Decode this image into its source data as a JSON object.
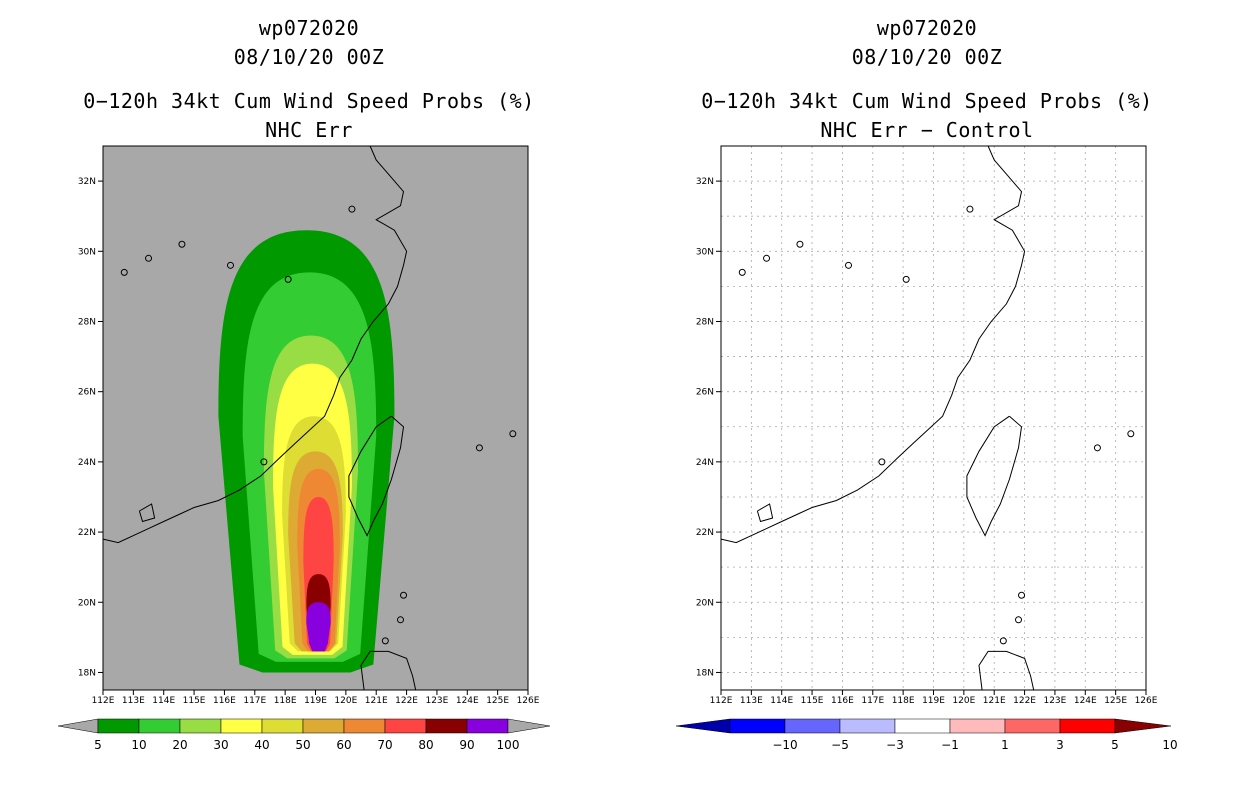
{
  "left": {
    "header": {
      "storm_id": "wp072020",
      "init_time": "08/10/20 00Z",
      "product": "0−120h 34kt Cum Wind Speed Probs (%)",
      "subtitle": "NHC Err"
    }
  },
  "right": {
    "header": {
      "storm_id": "wp072020",
      "init_time": "08/10/20 00Z",
      "product": "0−120h 34kt Cum Wind Speed Probs (%)",
      "subtitle": "NHC Err − Control"
    }
  },
  "chart_data": [
    {
      "type": "heatmap",
      "title": "0−120h 34kt Cum Wind Speed Probs (%)",
      "subtitle": "NHC Err",
      "x_ticks": [
        "112E",
        "113E",
        "114E",
        "115E",
        "116E",
        "117E",
        "118E",
        "119E",
        "120E",
        "121E",
        "122E",
        "123E",
        "124E",
        "125E",
        "126E"
      ],
      "y_ticks": [
        "18N",
        "20N",
        "22N",
        "24N",
        "26N",
        "28N",
        "30N",
        "32N"
      ],
      "xlim": [
        112,
        126
      ],
      "ylim": [
        17.5,
        33
      ],
      "grid": false,
      "background": "#a8a8a8",
      "colorbar": {
        "labels": [
          "5",
          "10",
          "20",
          "30",
          "40",
          "50",
          "60",
          "70",
          "80",
          "90",
          "100"
        ],
        "colors": [
          "#009900",
          "#33cc33",
          "#99dd44",
          "#ffff44",
          "#dddd33",
          "#ddaa33",
          "#ee8833",
          "#ff4444",
          "#880000",
          "#8800dd"
        ]
      },
      "probability_levels": [
        {
          "min": 5,
          "lon_west": 115.8,
          "lon_east": 121.6,
          "lat_north": 30.6,
          "lat_south": 18.0
        },
        {
          "min": 10,
          "lon_west": 116.6,
          "lon_east": 121.0,
          "lat_north": 29.4,
          "lat_south": 18.3
        },
        {
          "min": 20,
          "lon_west": 117.3,
          "lon_east": 120.4,
          "lat_north": 27.6,
          "lat_south": 18.4
        },
        {
          "min": 30,
          "lon_west": 117.6,
          "lon_east": 120.2,
          "lat_north": 26.8,
          "lat_south": 18.5
        },
        {
          "min": 40,
          "lon_west": 117.9,
          "lon_east": 120.0,
          "lat_north": 25.3,
          "lat_south": 18.6
        },
        {
          "min": 50,
          "lon_west": 118.1,
          "lon_east": 119.9,
          "lat_north": 24.3,
          "lat_south": 18.6
        },
        {
          "min": 60,
          "lon_west": 118.4,
          "lon_east": 119.8,
          "lat_north": 23.8,
          "lat_south": 18.6
        },
        {
          "min": 70,
          "lon_west": 118.6,
          "lon_east": 119.6,
          "lat_north": 23.0,
          "lat_south": 18.6
        },
        {
          "min": 80,
          "lon_west": 118.7,
          "lon_east": 119.5,
          "lat_north": 20.8,
          "lat_south": 18.6
        },
        {
          "min": 90,
          "lon_west": 118.7,
          "lon_east": 119.5,
          "lat_north": 20.0,
          "lat_south": 18.6
        }
      ]
    },
    {
      "type": "heatmap",
      "title": "0−120h 34kt Cum Wind Speed Probs (%)",
      "subtitle": "NHC Err − Control",
      "x_ticks": [
        "112E",
        "113E",
        "114E",
        "115E",
        "116E",
        "117E",
        "118E",
        "119E",
        "120E",
        "121E",
        "122E",
        "123E",
        "124E",
        "125E",
        "126E"
      ],
      "y_ticks": [
        "18N",
        "20N",
        "22N",
        "24N",
        "26N",
        "28N",
        "30N",
        "32N"
      ],
      "xlim": [
        112,
        126
      ],
      "ylim": [
        17.5,
        33
      ],
      "grid": true,
      "background": "#ffffff",
      "colorbar": {
        "labels": [
          "−10",
          "−5",
          "−3",
          "−1",
          "1",
          "3",
          "5",
          "10"
        ],
        "colors": [
          "#0000aa",
          "#0000ff",
          "#6666ff",
          "#bbbbff",
          "#ffffff",
          "#ffbbbb",
          "#ff6666",
          "#ff0000",
          "#880000"
        ]
      },
      "probability_levels": []
    }
  ]
}
